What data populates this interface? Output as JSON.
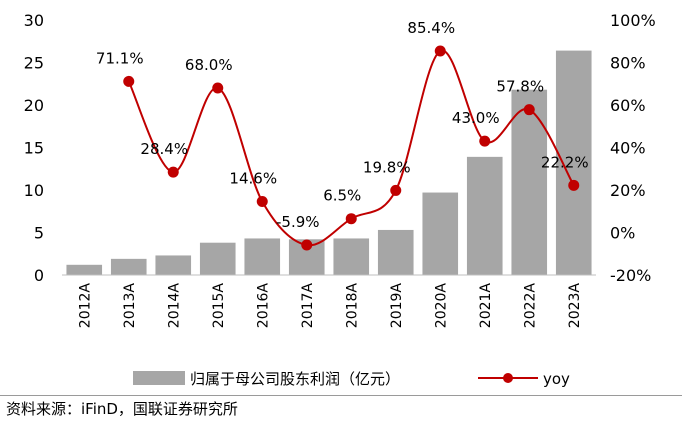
{
  "chart_data": {
    "type": "bar+line",
    "categories": [
      "2012A",
      "2013A",
      "2014A",
      "2015A",
      "2016A",
      "2017A",
      "2018A",
      "2019A",
      "2020A",
      "2021A",
      "2022A",
      "2023A"
    ],
    "series": [
      {
        "name": "归属于母公司股东利润（亿元）",
        "type": "bar",
        "axis": "left",
        "values": [
          1.2,
          1.9,
          2.3,
          3.8,
          4.3,
          4.2,
          4.3,
          5.3,
          9.7,
          13.9,
          21.8,
          26.4
        ],
        "color": "#a6a6a6"
      },
      {
        "name": "yoy",
        "type": "line",
        "axis": "right",
        "values": [
          null,
          71.1,
          28.4,
          68.0,
          14.6,
          -5.9,
          6.5,
          19.8,
          85.4,
          43.0,
          57.8,
          22.2
        ],
        "labels": [
          "",
          "71.1%",
          "28.4%",
          "68.0%",
          "14.6%",
          "-5.9%",
          "6.5%",
          "19.8%",
          "85.4%",
          "43.0%",
          "57.8%",
          "22.2%"
        ],
        "color": "#c00000"
      }
    ],
    "y_left": {
      "ylim": [
        0,
        30
      ],
      "ticks": [
        "0",
        "5",
        "10",
        "15",
        "20",
        "25",
        "30"
      ]
    },
    "y_right": {
      "ylim": [
        -20,
        100
      ],
      "ticks": [
        "-20%",
        "0%",
        "20%",
        "40%",
        "60%",
        "80%",
        "100%"
      ]
    },
    "legend_position": "bottom",
    "grid": false
  },
  "source": "资料来源：iFinD，国联证券研究所"
}
